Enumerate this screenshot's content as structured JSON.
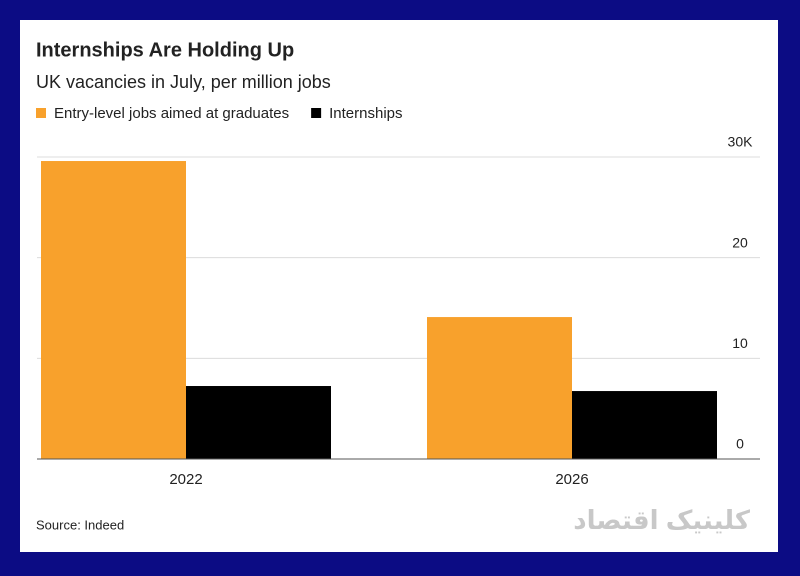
{
  "chart_data": {
    "type": "bar",
    "title": "Internships Are Holding Up",
    "subtitle": "UK vacancies in July, per million jobs",
    "categories": [
      "2022",
      "2026"
    ],
    "series": [
      {
        "name": "Entry-level jobs aimed at graduates",
        "color": "#f8a12c",
        "values": [
          29.6,
          14.1
        ]
      },
      {
        "name": "Internships",
        "color": "#000000",
        "values": [
          7.25,
          6.75
        ]
      }
    ],
    "ylim": [
      0,
      30
    ],
    "yticks": [
      0,
      10,
      20,
      {
        "value": 30,
        "label": "30K"
      }
    ],
    "grid": true,
    "source": "Source: Indeed",
    "watermark": "کلینیک اقتصاد"
  }
}
